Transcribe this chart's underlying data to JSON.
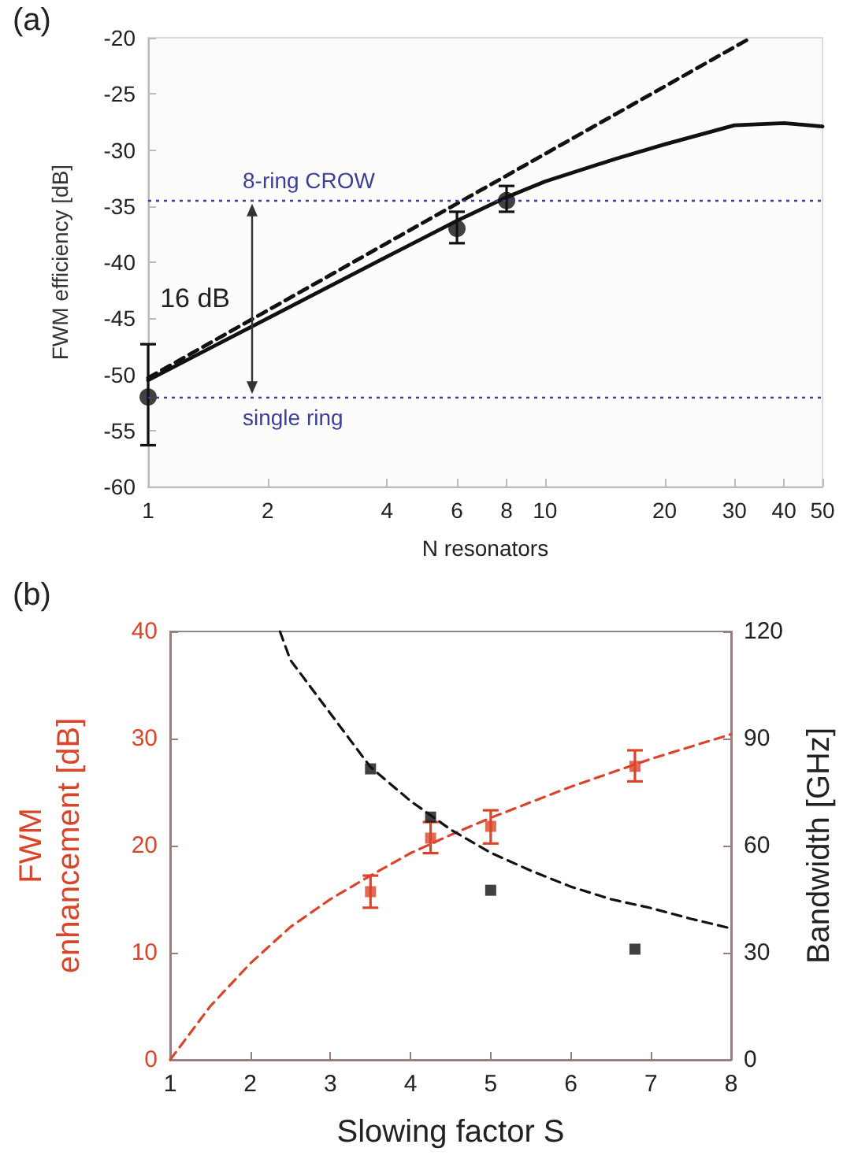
{
  "chart_data": [
    {
      "type": "scatter",
      "title": "(a)",
      "xlabel": "N resonators",
      "ylabel": "FWM efficiency [dB]",
      "log": "x",
      "xlim": [
        1,
        50
      ],
      "xticks": [
        1,
        2,
        4,
        6,
        8,
        10,
        20,
        30,
        40,
        50
      ],
      "ylim": [
        -60,
        -20
      ],
      "yticks": [
        -60,
        -55,
        -50,
        -45,
        -40,
        -35,
        -30,
        -25,
        -20
      ],
      "series": [
        {
          "type": "line",
          "line_style": "dashed",
          "marker": "none",
          "color": "#111111",
          "x": [
            1,
            33
          ],
          "values": [
            -50.3,
            -20
          ]
        },
        {
          "type": "line",
          "line_style": "solid",
          "marker": "none",
          "color": "#111111",
          "x": [
            1,
            2,
            4,
            6,
            8,
            10,
            15,
            20,
            30,
            40,
            50
          ],
          "values": [
            -50.5,
            -45,
            -39.5,
            -36.3,
            -34.2,
            -32.8,
            -30.8,
            -29.5,
            -27.8,
            -27.6,
            -27.9
          ]
        },
        {
          "marker": "circle",
          "color": "#111111",
          "x": [
            1,
            6,
            8
          ],
          "values": [
            -52,
            -37,
            -34.5
          ],
          "errors": [
            [
              -56.3,
              -47.3
            ],
            [
              -38.3,
              -35.5
            ],
            [
              -35.5,
              -33.2
            ]
          ]
        }
      ],
      "ref_lines": [
        {
          "axis": "y",
          "value": -34.5,
          "label": "8-ring CROW",
          "color": "#3a3f9a",
          "line_style": "dotted"
        },
        {
          "axis": "y",
          "value": -52,
          "label": "single ring",
          "color": "#3a3f9a",
          "line_style": "dotted"
        }
      ],
      "annotations": [
        "16 dB"
      ]
    },
    {
      "type": "scatter",
      "title": "(b)",
      "xlabel": "Slowing factor S",
      "ylabel": "FWM\nenhancement [dB]",
      "y2label": "Bandwidth [GHz]",
      "xlim": [
        1,
        8
      ],
      "xticks": [
        1,
        2,
        3,
        4,
        5,
        6,
        7,
        8
      ],
      "ylim": [
        0,
        40
      ],
      "yticks": [
        0,
        10,
        20,
        30,
        40
      ],
      "y2lim": [
        0,
        120
      ],
      "y2ticks": [
        0,
        30,
        60,
        90,
        120
      ],
      "series": [
        {
          "type": "line",
          "line_style": "dashed",
          "marker": "none",
          "color": "#d9452b",
          "x": [
            1,
            1.5,
            2,
            2.5,
            3,
            3.5,
            4,
            4.5,
            5,
            6,
            7,
            8
          ],
          "values": [
            0,
            5,
            9,
            12.4,
            15,
            17.2,
            19.3,
            21,
            22.6,
            25.5,
            28.1,
            30.4
          ]
        },
        {
          "type": "line",
          "line_style": "dashed",
          "marker": "none",
          "color": "#111111",
          "axis": "y2",
          "x": [
            2.37,
            2.5,
            3,
            3.5,
            4,
            4.5,
            5,
            5.5,
            6,
            6.5,
            7,
            7.5,
            8
          ],
          "values": [
            120,
            112,
            97,
            82,
            72.5,
            64.5,
            58,
            53,
            48.5,
            45,
            42.5,
            39.5,
            36.8
          ]
        },
        {
          "marker": "square",
          "color": "#d9452b",
          "x": [
            3.5,
            4.25,
            5,
            6.8
          ],
          "values": [
            15.7,
            20.7,
            21.8,
            27.4
          ],
          "errors": [
            [
              14.2,
              17.2
            ],
            [
              19.3,
              22.2
            ],
            [
              20.2,
              23.3
            ],
            [
              26,
              28.9
            ]
          ]
        },
        {
          "marker": "square",
          "color": "#111111",
          "axis": "y2",
          "x": [
            3.5,
            4.25,
            5,
            6.8
          ],
          "values": [
            81.5,
            68,
            47.5,
            31
          ]
        }
      ]
    }
  ]
}
